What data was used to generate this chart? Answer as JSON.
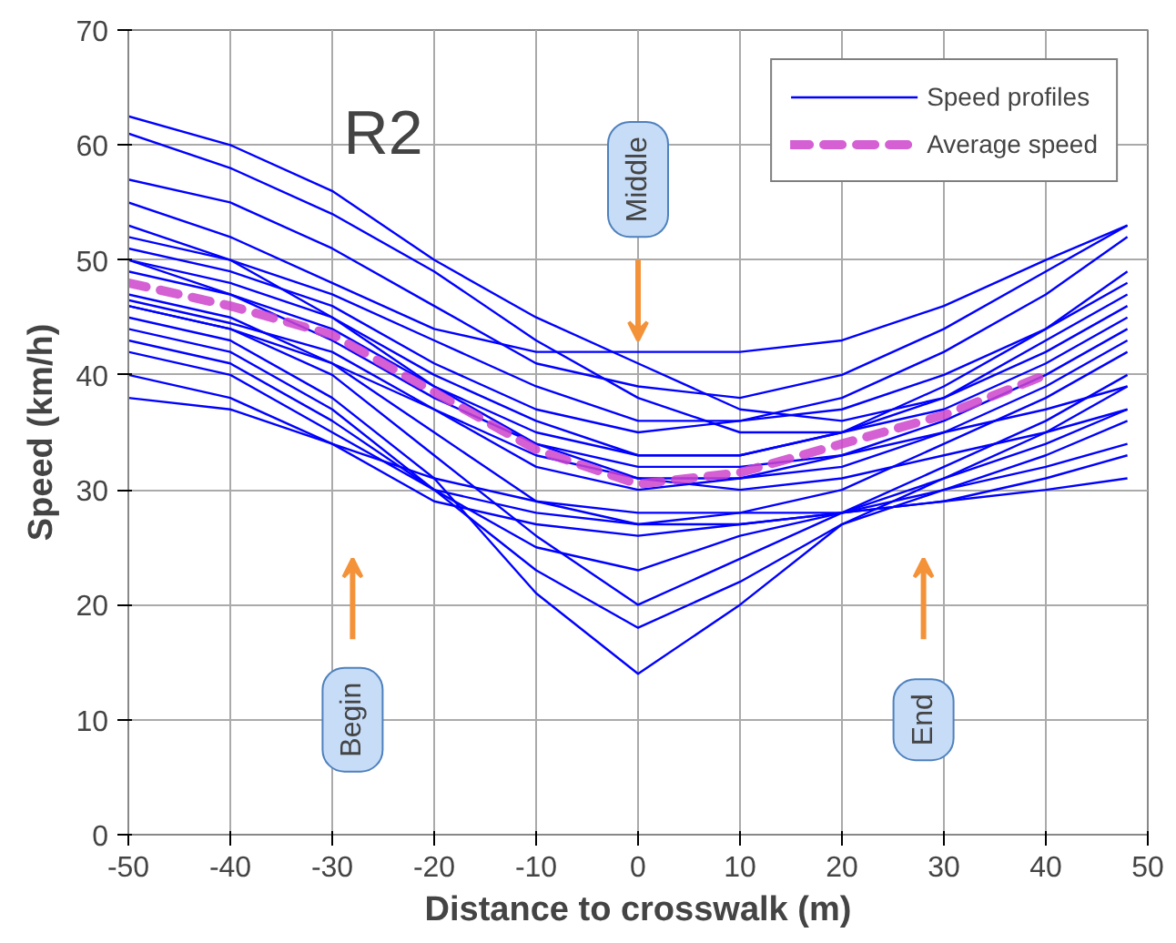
{
  "chart_data": {
    "type": "line",
    "xlabel": "Distance to crosswalk (m)",
    "ylabel": "Speed (km/h)",
    "x": [
      -50,
      -40,
      -30,
      -20,
      -10,
      0,
      10,
      20,
      30,
      40,
      48
    ],
    "xlim": [
      -50,
      50
    ],
    "ylim": [
      0,
      70
    ],
    "xticks": [
      -50,
      -40,
      -30,
      -20,
      -10,
      0,
      10,
      20,
      30,
      40,
      50
    ],
    "yticks": [
      0,
      10,
      20,
      30,
      40,
      50,
      60,
      70
    ],
    "grid": true,
    "legend": "top right",
    "line_style": "solid",
    "marker": "none",
    "series": [
      {
        "name": "Speed profiles",
        "color": "#0000ff",
        "values": [
          62.5,
          60,
          56,
          50,
          45,
          41,
          37,
          36,
          38,
          43,
          47
        ]
      },
      {
        "color": "#0000ff",
        "values": [
          61,
          58,
          54,
          49,
          43,
          38,
          35,
          35,
          37,
          41,
          45
        ]
      },
      {
        "color": "#0000ff",
        "values": [
          57,
          55,
          51,
          46,
          41,
          39,
          38,
          40,
          44,
          49,
          53
        ]
      },
      {
        "color": "#0000ff",
        "values": [
          55,
          52,
          48,
          44,
          42,
          42,
          42,
          43,
          46,
          50,
          53
        ]
      },
      {
        "color": "#0000ff",
        "values": [
          52,
          50,
          47,
          43,
          39,
          36,
          36,
          38,
          42,
          47,
          52
        ]
      },
      {
        "color": "#0000ff",
        "values": [
          50,
          48,
          45,
          40,
          36,
          33,
          33,
          35,
          39,
          44,
          49
        ]
      },
      {
        "color": "#0000ff",
        "values": [
          46.5,
          44.5,
          42,
          37,
          32,
          30,
          31,
          33,
          36,
          40,
          44
        ]
      },
      {
        "color": "#0000ff",
        "values": [
          47,
          45,
          41,
          35,
          29,
          27,
          28,
          30,
          34,
          38,
          42
        ]
      },
      {
        "color": "#0000ff",
        "values": [
          46,
          44,
          40,
          33,
          26,
          20,
          24,
          28,
          32,
          36,
          40
        ]
      },
      {
        "color": "#0000ff",
        "values": [
          45,
          43,
          38,
          31,
          21,
          14,
          20,
          27,
          31,
          35,
          39
        ]
      },
      {
        "color": "#0000ff",
        "values": [
          44,
          42,
          37,
          30,
          23,
          18,
          22,
          27,
          30,
          33,
          36
        ]
      },
      {
        "color": "#0000ff",
        "values": [
          43,
          41,
          36,
          30,
          25,
          23,
          26,
          28,
          31,
          34,
          37
        ]
      },
      {
        "color": "#0000ff",
        "values": [
          42,
          40,
          35,
          30,
          28,
          27,
          27,
          28,
          30,
          32,
          34
        ]
      },
      {
        "color": "#0000ff",
        "values": [
          40,
          38,
          34,
          29,
          27,
          26,
          27,
          28,
          29,
          31,
          33
        ]
      },
      {
        "color": "#0000ff",
        "values": [
          38,
          37,
          34,
          31,
          29,
          28,
          28,
          28,
          29,
          30,
          31
        ]
      },
      {
        "color": "#0000ff",
        "values": [
          50,
          47,
          43,
          38,
          34,
          31,
          31,
          32,
          35,
          39,
          43
        ]
      },
      {
        "color": "#0000ff",
        "values": [
          53,
          50,
          45,
          39,
          35,
          33,
          33,
          35,
          38,
          42,
          46
        ]
      },
      {
        "color": "#0000ff",
        "values": [
          49,
          47,
          44,
          39,
          34,
          32,
          32,
          33,
          35,
          37,
          39
        ]
      },
      {
        "color": "#0000ff",
        "values": [
          46,
          44,
          41,
          37,
          33,
          31,
          30,
          31,
          33,
          35,
          37
        ]
      },
      {
        "color": "#0000ff",
        "values": [
          51,
          49,
          46,
          41,
          37,
          35,
          36,
          37,
          40,
          44,
          48
        ]
      },
      {
        "name": "Average speed",
        "color": "#cc44cc",
        "line_style": "dashed",
        "x": [
          -50,
          -40,
          -30,
          -20,
          -10,
          0,
          10,
          20,
          30,
          40
        ],
        "values": [
          48,
          46,
          43.5,
          38.5,
          33.5,
          30.5,
          31.5,
          34,
          36.5,
          40
        ]
      }
    ],
    "annotations": [
      "R2",
      "Middle",
      "Begin",
      "End"
    ]
  }
}
